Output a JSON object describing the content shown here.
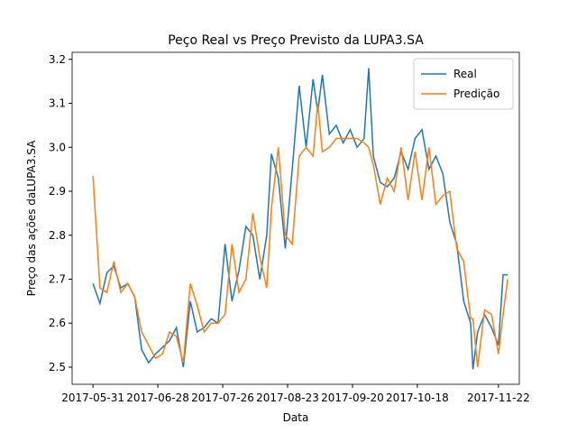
{
  "chart_data": {
    "type": "line",
    "title": "Peço Real vs Preço Previsto da LUPA3.SA",
    "x_label": "Data",
    "y_label": "Preço das ações daLUPA3.SA",
    "x": [
      "2017-05-31",
      "2017-06-03",
      "2017-06-06",
      "2017-06-09",
      "2017-06-12",
      "2017-06-15",
      "2017-06-18",
      "2017-06-21",
      "2017-06-24",
      "2017-06-27",
      "2017-06-30",
      "2017-07-03",
      "2017-07-06",
      "2017-07-09",
      "2017-07-12",
      "2017-07-15",
      "2017-07-18",
      "2017-07-21",
      "2017-07-24",
      "2017-07-27",
      "2017-07-30",
      "2017-08-02",
      "2017-08-05",
      "2017-08-08",
      "2017-08-11",
      "2017-08-14",
      "2017-08-16",
      "2017-08-19",
      "2017-08-22",
      "2017-08-25",
      "2017-08-28",
      "2017-08-31",
      "2017-09-03",
      "2017-09-05",
      "2017-09-07",
      "2017-09-10",
      "2017-09-13",
      "2017-09-16",
      "2017-09-19",
      "2017-09-22",
      "2017-09-25",
      "2017-09-27",
      "2017-09-29",
      "2017-10-02",
      "2017-10-05",
      "2017-10-08",
      "2017-10-11",
      "2017-10-14",
      "2017-10-17",
      "2017-10-20",
      "2017-10-23",
      "2017-10-26",
      "2017-10-29",
      "2017-11-01",
      "2017-11-04",
      "2017-11-07",
      "2017-11-10",
      "2017-11-11",
      "2017-11-13",
      "2017-11-16",
      "2017-11-19",
      "2017-11-22",
      "2017-11-24",
      "2017-11-26"
    ],
    "series": [
      {
        "name": "Real",
        "color": "#1f77b4",
        "values": [
          2.69,
          2.645,
          2.715,
          2.73,
          2.68,
          2.69,
          2.66,
          2.54,
          2.51,
          2.53,
          2.545,
          2.56,
          2.59,
          2.5,
          2.65,
          2.58,
          2.59,
          2.61,
          2.6,
          2.78,
          2.65,
          2.72,
          2.82,
          2.8,
          2.7,
          2.8,
          2.985,
          2.93,
          2.77,
          2.95,
          3.14,
          3.0,
          3.155,
          3.08,
          3.165,
          3.03,
          3.05,
          3.01,
          3.04,
          3.0,
          3.02,
          3.18,
          2.98,
          2.92,
          2.91,
          2.93,
          2.99,
          2.95,
          3.02,
          3.04,
          2.95,
          2.98,
          2.94,
          2.83,
          2.78,
          2.65,
          2.6,
          2.495,
          2.58,
          2.62,
          2.59,
          2.55,
          2.71,
          2.71
        ]
      },
      {
        "name": "Predição",
        "color": "#ff7f0e",
        "values": [
          2.935,
          2.68,
          2.67,
          2.74,
          2.67,
          2.69,
          2.66,
          2.58,
          2.55,
          2.52,
          2.53,
          2.58,
          2.57,
          2.51,
          2.69,
          2.64,
          2.58,
          2.6,
          2.6,
          2.62,
          2.78,
          2.67,
          2.7,
          2.85,
          2.75,
          2.68,
          2.86,
          3.0,
          2.8,
          2.78,
          2.98,
          3.0,
          2.98,
          3.1,
          2.99,
          3.0,
          3.02,
          3.02,
          3.02,
          3.02,
          3.01,
          3.0,
          2.96,
          2.87,
          2.93,
          2.9,
          3.0,
          2.88,
          2.99,
          2.88,
          3.0,
          2.87,
          2.89,
          2.9,
          2.77,
          2.74,
          2.61,
          2.61,
          2.5,
          2.63,
          2.62,
          2.53,
          2.62,
          2.7
        ]
      }
    ],
    "xlim": [
      "2017-05-22",
      "2017-12-01"
    ],
    "xticks": [
      "2017-05-31",
      "2017-06-28",
      "2017-07-26",
      "2017-08-23",
      "2017-09-20",
      "2017-10-18",
      "2017-11-22"
    ],
    "ylim": [
      2.461,
      3.216
    ],
    "yticks": [
      2.5,
      2.6,
      2.7,
      2.8,
      2.9,
      {
        "value": 3,
        "label": "3.0"
      },
      3.1,
      3.2
    ],
    "legend": "upper right"
  }
}
